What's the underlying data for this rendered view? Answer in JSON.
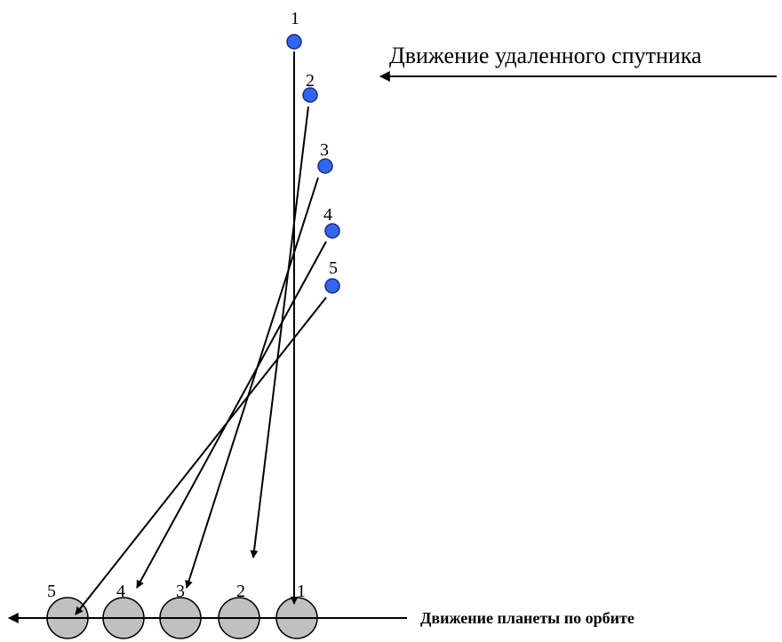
{
  "labels": {
    "satellite_motion": "Движение удаленного спутника",
    "planet_motion": "Движение планеты по орбите"
  },
  "satellite_positions": [
    {
      "number": "1"
    },
    {
      "number": "2"
    },
    {
      "number": "3"
    },
    {
      "number": "4"
    },
    {
      "number": "5"
    }
  ],
  "planet_positions": [
    {
      "number": "5"
    },
    {
      "number": "4"
    },
    {
      "number": "3"
    },
    {
      "number": "2"
    },
    {
      "number": "1"
    }
  ],
  "colors": {
    "satellite": "#3366ee",
    "satellite_stroke": "#1a2a8a",
    "planet": "#c0c0c0",
    "line": "#000000"
  }
}
